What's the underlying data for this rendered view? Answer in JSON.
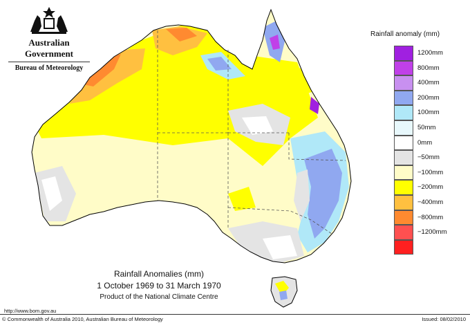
{
  "header": {
    "government": "Australian Government",
    "bureau": "Bureau of Meteorology"
  },
  "map": {
    "title": "Rainfall Anomalies (mm)",
    "period": "1 October 1969 to 31 March 1970",
    "product": "Product of the National Climate Centre",
    "region": "Australia"
  },
  "legend": {
    "title": "Rainfall anomaly (mm)",
    "items": [
      {
        "label": "1200mm",
        "color": "#a020e0"
      },
      {
        "label": "800mm",
        "color": "#c040e8"
      },
      {
        "label": "400mm",
        "color": "#c890f0"
      },
      {
        "label": "200mm",
        "color": "#90a8f0"
      },
      {
        "label": "100mm",
        "color": "#b0e8f8"
      },
      {
        "label": "50mm",
        "color": "#e8f8fc"
      },
      {
        "label": "0mm",
        "color": "#ffffff"
      },
      {
        "label": "−50mm",
        "color": "#e4e4e4"
      },
      {
        "label": "−100mm",
        "color": "#fffcc8"
      },
      {
        "label": "−200mm",
        "color": "#ffff00"
      },
      {
        "label": "−400mm",
        "color": "#ffc040"
      },
      {
        "label": "−800mm",
        "color": "#ff8a30"
      },
      {
        "label": "−1200mm",
        "color": "#ff5050"
      },
      {
        "label": "",
        "color": "#ff2020"
      }
    ]
  },
  "footer": {
    "url": "http://www.bom.gov.au",
    "copyright": "© Commonwealth of Australia 2010, Australian Bureau of Meteorology",
    "issued": "Issued: 08/02/2010"
  }
}
